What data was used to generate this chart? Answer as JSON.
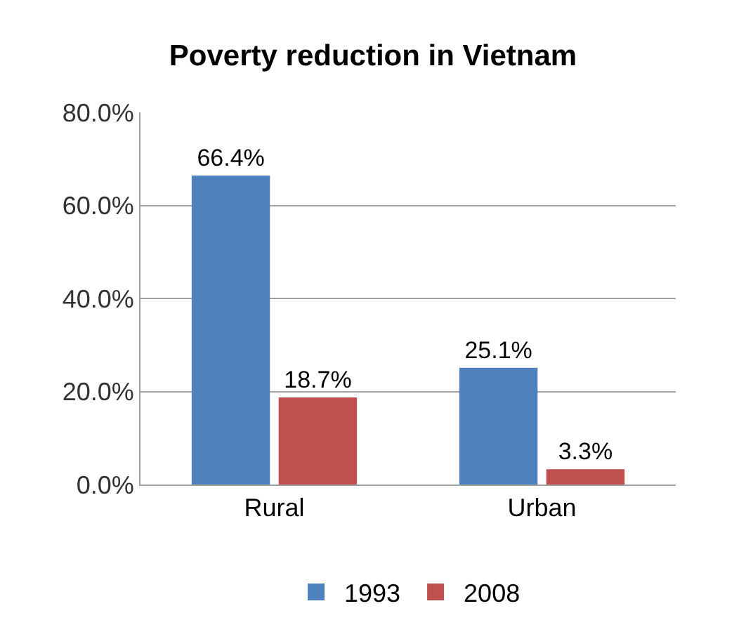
{
  "chart_data": {
    "type": "bar",
    "title": "Poverty reduction in Vietnam",
    "categories": [
      "Rural",
      "Urban"
    ],
    "series": [
      {
        "name": "1993",
        "color": "#4f81bd",
        "values": [
          66.4,
          25.1
        ],
        "value_labels": [
          "66.4%",
          "25.1%"
        ]
      },
      {
        "name": "2008",
        "color": "#c0504d",
        "values": [
          18.7,
          3.3
        ],
        "value_labels": [
          "18.7%",
          "3.3%"
        ]
      }
    ],
    "ylim": [
      0,
      80
    ],
    "yticks": [
      {
        "value": 0,
        "label": "0.0%"
      },
      {
        "value": 20,
        "label": "20.0%"
      },
      {
        "value": 40,
        "label": "40.0%"
      },
      {
        "value": 60,
        "label": "60.0%"
      },
      {
        "value": 80,
        "label": "80.0%"
      }
    ],
    "grid": "y",
    "legend": "bottom"
  }
}
